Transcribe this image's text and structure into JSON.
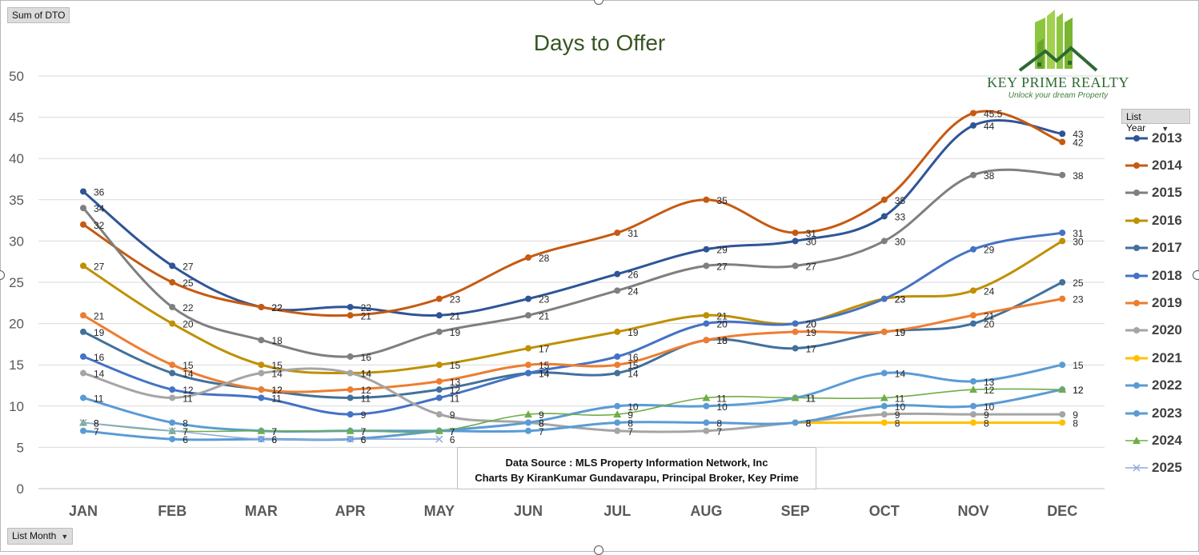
{
  "pivot": {
    "value_field": "Sum of DTO",
    "axis_field": "List Month",
    "legend_field": "List Year"
  },
  "logo": {
    "name": "KEY PRIME REALTY",
    "tagline": "Unlock your dream Property"
  },
  "source_box": {
    "line1": "Data Source : MLS Property Information Network, Inc",
    "line2": "Charts By KiranKumar Gundavarapu, Principal Broker, Key Prime"
  },
  "chart_data": {
    "type": "line",
    "title": "Days to Offer",
    "xlabel": "",
    "ylabel": "",
    "categories": [
      "JAN",
      "FEB",
      "MAR",
      "APR",
      "MAY",
      "JUN",
      "JUL",
      "AUG",
      "SEP",
      "OCT",
      "NOV",
      "DEC"
    ],
    "ylim": [
      0,
      50
    ],
    "yticks": [
      0,
      5,
      10,
      15,
      20,
      25,
      30,
      35,
      40,
      45,
      50
    ],
    "grid": true,
    "smooth": true,
    "legend_position": "right",
    "series": [
      {
        "name": "2013",
        "color": "#2f5597",
        "marker": "circle",
        "values": [
          36,
          27,
          22,
          22,
          21,
          23,
          26,
          29,
          30,
          33,
          44,
          43
        ]
      },
      {
        "name": "2014",
        "color": "#c55a11",
        "marker": "circle",
        "values": [
          32,
          25,
          22,
          21,
          23,
          28,
          31,
          35,
          31,
          35,
          45.5,
          42
        ]
      },
      {
        "name": "2015",
        "color": "#7f7f7f",
        "marker": "circle",
        "values": [
          34,
          22,
          18,
          16,
          19,
          21,
          24,
          27,
          27,
          30,
          38,
          38
        ]
      },
      {
        "name": "2016",
        "color": "#bf9000",
        "marker": "circle",
        "values": [
          27,
          20,
          15,
          14,
          15,
          17,
          19,
          21,
          20,
          23,
          24,
          30
        ]
      },
      {
        "name": "2017",
        "color": "#41719c",
        "marker": "circle",
        "values": [
          19,
          14,
          12,
          11,
          12,
          14,
          14,
          18,
          17,
          19,
          20,
          25
        ]
      },
      {
        "name": "2018",
        "color": "#4472c4",
        "marker": "circle",
        "values": [
          16,
          12,
          11,
          9,
          11,
          14,
          16,
          20,
          20,
          23,
          29,
          31
        ]
      },
      {
        "name": "2019",
        "color": "#ed7d31",
        "marker": "circle",
        "values": [
          21,
          15,
          12,
          12,
          13,
          15,
          15,
          18,
          19,
          19,
          21,
          23
        ]
      },
      {
        "name": "2020",
        "color": "#a5a5a5",
        "marker": "circle",
        "values": [
          14,
          11,
          14,
          14,
          9,
          8,
          7,
          7,
          8,
          9,
          9,
          9
        ]
      },
      {
        "name": "2021",
        "color": "#ffc000",
        "marker": "circle",
        "values": [
          null,
          null,
          null,
          null,
          null,
          null,
          null,
          null,
          8,
          8,
          8,
          8
        ]
      },
      {
        "name": "2022",
        "color": "#5b9bd5",
        "marker": "circle",
        "values": [
          11,
          8,
          7,
          7,
          7,
          7,
          8,
          8,
          8,
          10,
          10,
          12
        ]
      },
      {
        "name": "2023",
        "color": "#5b9bd5",
        "marker": "circle",
        "values": [
          7,
          6,
          6,
          6,
          7,
          8,
          10,
          10,
          11,
          14,
          13,
          15
        ]
      },
      {
        "name": "2024",
        "color": "#70ad47",
        "marker": "triangle",
        "values": [
          8,
          7,
          7,
          7,
          7,
          9,
          9,
          11,
          11,
          11,
          12,
          12
        ]
      },
      {
        "name": "2025",
        "color": "#8faadc",
        "marker": "x",
        "values": [
          8,
          7,
          6,
          6,
          6,
          null,
          null,
          null,
          null,
          null,
          null,
          null
        ]
      }
    ]
  }
}
